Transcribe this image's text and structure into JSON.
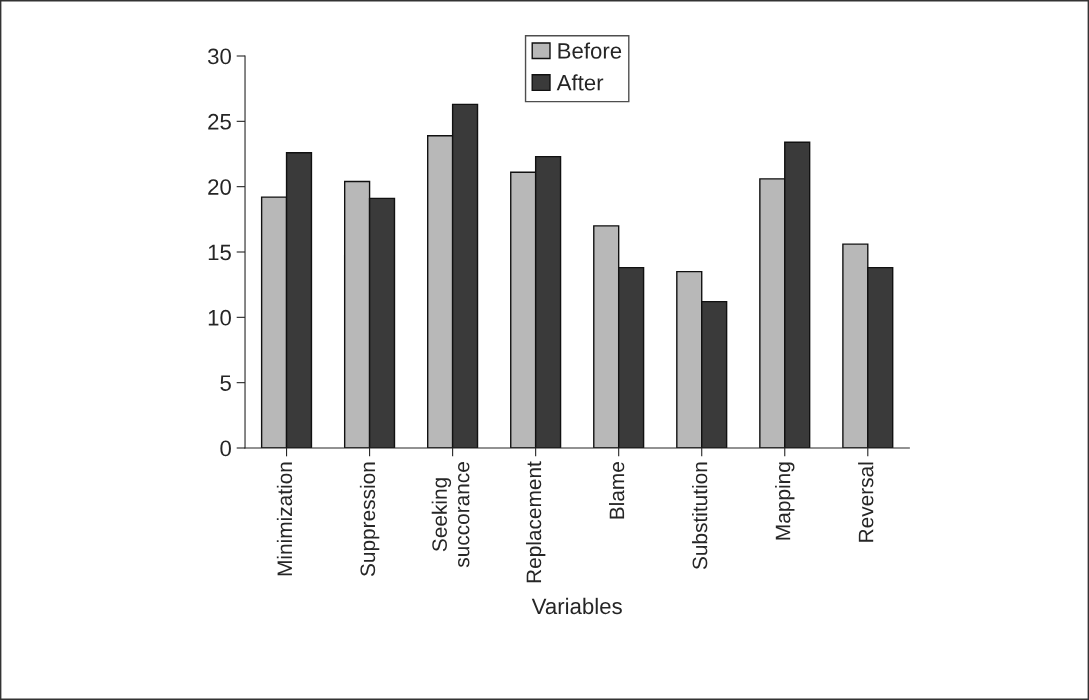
{
  "chart_data": {
    "type": "bar",
    "xlabel": "Variables",
    "categories": [
      "Minimization",
      "Suppression",
      "Seeking\nsuccorance",
      "Replacement",
      "Blame",
      "Substitution",
      "Mapping",
      "Reversal"
    ],
    "series": [
      {
        "name": "Before",
        "color": "#b8b8b8",
        "values": [
          19.2,
          20.4,
          23.9,
          21.1,
          17.0,
          13.5,
          20.6,
          15.6
        ]
      },
      {
        "name": "After",
        "color": "#3a3a3a",
        "values": [
          22.6,
          19.1,
          26.3,
          22.3,
          13.8,
          11.2,
          23.4,
          13.8
        ]
      }
    ],
    "ylim": [
      0,
      30
    ],
    "yticks": [
      0,
      5,
      10,
      15,
      20,
      25,
      30
    ],
    "grid": false,
    "legend": "top"
  }
}
